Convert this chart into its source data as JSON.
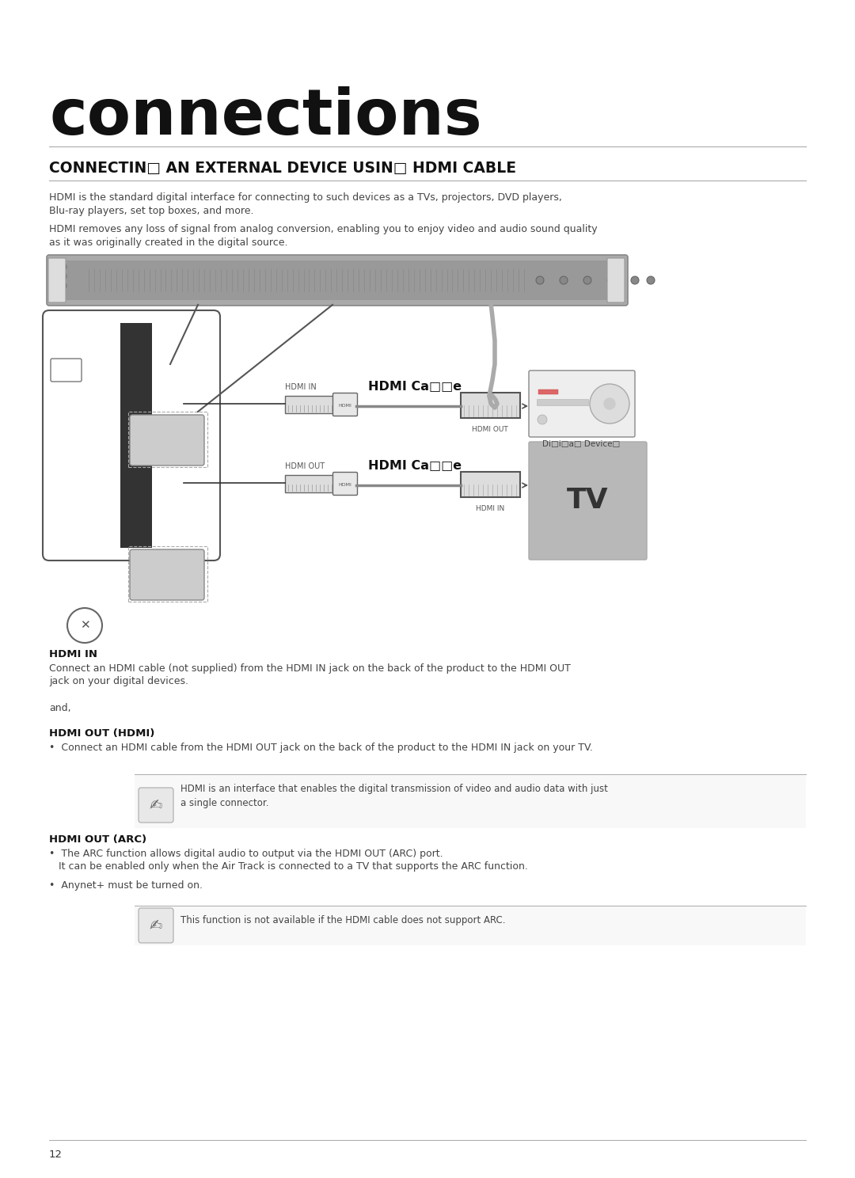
{
  "bg_color": "#ffffff",
  "title_large": "connections",
  "title_large_size": 58,
  "section_title": "CONNECTIN□ AN EXTERNAL DEVICE USIN□ HDMI CABLE",
  "section_title_size": 13.5,
  "para1_line1": "HDMI is the standard digital interface for connecting to such devices as a TVs, projectors, DVD players,",
  "para1_line2": "Blu-ray players, set top boxes, and more.",
  "para2_line1": "HDMI removes any loss of signal from analog conversion, enabling you to enjoy video and audio sound quality",
  "para2_line2": "as it was originally created in the digital source.",
  "hdmi_in_label": "HDMI IN",
  "hdmi_in_desc1": "Connect an HDMI cable (not supplied) from the HDMI IN jack on the back of the product to the HDMI OUT",
  "hdmi_in_desc2": "jack on your digital devices.",
  "and_text": "and,",
  "hdmi_out_hdmi_label": "HDMI OUT (HDMI)",
  "hdmi_out_hdmi_bullet": "•  Connect an HDMI cable from the HDMI OUT jack on the back of the product to the HDMI IN jack on your TV.",
  "note1_text1": "HDMI is an interface that enables the digital transmission of video and audio data with just",
  "note1_text2": "a single connector.",
  "hdmi_out_arc_label": "HDMI OUT (ARC)",
  "arc_bullet1_line1": "•  The ARC function allows digital audio to output via the HDMI OUT (ARC) port.",
  "arc_bullet1_line2": "   It can be enabled only when the Air Track is connected to a TV that supports the ARC function.",
  "arc_bullet2": "•  Anynet+ must be turned on.",
  "note2_text": "This function is not available if the HDMI cable does not support ARC.",
  "page_num": "12",
  "hdmi_cable_label": "HDMI Ca□□e",
  "hdmi_out_label": "HDMI OUT",
  "hdmi_in_port_label": "HDMI IN",
  "hdmi_out_port_label": "HDMI OUT",
  "hdmi_in_tv_label": "HDMI IN",
  "digital_device_label": "Di□i□a□ Device□",
  "tv_label": "TV"
}
